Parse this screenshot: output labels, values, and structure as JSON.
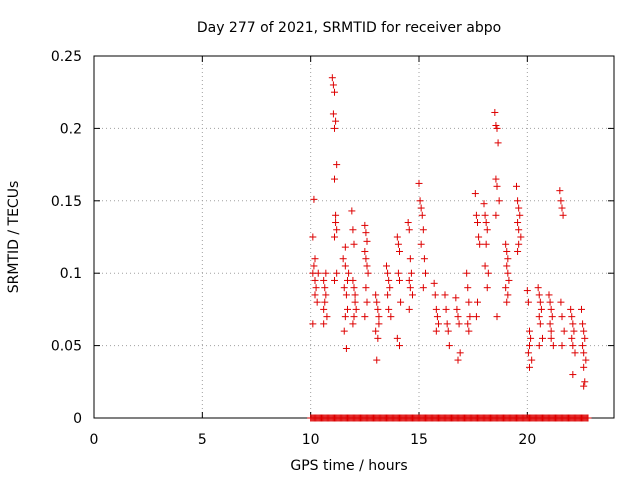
{
  "chart_data": {
    "type": "scatter",
    "title": "Day 277 of 2021, SRMTID for receiver abpo",
    "xlabel": "GPS time / hours",
    "ylabel": "SRMTID / TECUs",
    "xlim": [
      0,
      24
    ],
    "ylim": [
      0,
      0.25
    ],
    "xticks": [
      0,
      5,
      10,
      15,
      20
    ],
    "xtick_labels": [
      "0",
      "5",
      "10",
      "15",
      "20"
    ],
    "yticks": [
      0,
      0.05,
      0.1,
      0.15,
      0.2,
      0.25
    ],
    "ytick_labels": [
      "0",
      "0.05",
      "0.1",
      "0.15",
      "0.2",
      "0.25"
    ],
    "grid": true,
    "marker": "+",
    "color": "#dd0000",
    "series": [
      {
        "name": "SRMTID",
        "x": [
          10.1,
          10.15,
          10.2,
          10.1,
          10.15,
          10.2,
          10.25,
          10.3,
          10.1,
          10.2,
          10.35,
          10.6,
          10.65,
          10.7,
          10.6,
          10.7,
          10.75,
          10.6,
          10.65,
          11.0,
          11.05,
          11.1,
          11.05,
          11.1,
          11.15,
          11.1,
          11.2,
          11.15,
          11.2,
          11.1,
          11.15,
          11.2,
          11.1,
          11.5,
          11.6,
          11.55,
          11.65,
          11.7,
          11.6,
          11.55,
          11.65,
          11.7,
          11.75,
          11.6,
          11.9,
          11.95,
          12.0,
          11.95,
          12.0,
          12.05,
          12.1,
          12.0,
          11.95,
          12.05,
          12.5,
          12.55,
          12.6,
          12.5,
          12.55,
          12.6,
          12.65,
          12.55,
          12.6,
          12.5,
          13.0,
          13.05,
          13.1,
          13.15,
          13.0,
          13.1,
          13.05,
          13.15,
          13.5,
          13.55,
          13.6,
          13.65,
          13.55,
          13.6,
          13.7,
          14.0,
          14.05,
          14.1,
          14.05,
          14.1,
          14.15,
          14.0,
          14.1,
          14.5,
          14.55,
          14.6,
          14.65,
          14.55,
          14.6,
          14.7,
          14.55,
          15.0,
          15.05,
          15.1,
          15.15,
          15.2,
          15.1,
          15.25,
          15.3,
          15.2,
          15.7,
          15.75,
          15.8,
          15.85,
          15.9,
          15.8,
          16.2,
          16.25,
          16.3,
          16.35,
          16.4,
          16.7,
          16.75,
          16.8,
          16.85,
          16.9,
          16.8,
          17.2,
          17.25,
          17.3,
          17.35,
          17.25,
          17.3,
          17.6,
          17.65,
          17.7,
          17.75,
          17.8,
          17.7,
          17.65,
          18.0,
          18.05,
          18.1,
          18.15,
          18.1,
          18.05,
          18.2,
          18.15,
          18.5,
          18.55,
          18.6,
          18.65,
          18.55,
          18.6,
          18.7,
          18.55,
          18.6,
          19.0,
          19.05,
          19.1,
          19.05,
          19.1,
          19.15,
          19.0,
          19.1,
          19.05,
          19.5,
          19.55,
          19.6,
          19.65,
          19.55,
          19.6,
          19.7,
          19.6,
          19.55,
          20.0,
          20.05,
          20.1,
          20.15,
          20.1,
          20.05,
          20.2,
          20.1,
          20.5,
          20.55,
          20.6,
          20.65,
          20.55,
          20.6,
          20.7,
          20.55,
          21.0,
          21.05,
          21.1,
          21.15,
          21.05,
          21.1,
          21.2,
          21.1,
          21.5,
          21.55,
          21.6,
          21.65,
          21.55,
          21.6,
          21.7,
          21.6,
          22.0,
          22.05,
          22.1,
          22.15,
          22.05,
          22.1,
          22.2,
          22.1,
          22.5,
          22.55,
          22.6,
          22.65,
          22.55,
          22.6,
          22.7,
          22.6,
          22.65,
          22.6
        ],
        "y": [
          0.1,
          0.105,
          0.095,
          0.125,
          0.151,
          0.085,
          0.09,
          0.08,
          0.065,
          0.11,
          0.1,
          0.075,
          0.08,
          0.085,
          0.095,
          0.1,
          0.07,
          0.065,
          0.09,
          0.235,
          0.23,
          0.225,
          0.21,
          0.2,
          0.205,
          0.165,
          0.175,
          0.135,
          0.13,
          0.125,
          0.14,
          0.1,
          0.095,
          0.11,
          0.105,
          0.09,
          0.085,
          0.075,
          0.07,
          0.06,
          0.048,
          0.095,
          0.1,
          0.118,
          0.143,
          0.13,
          0.12,
          0.095,
          0.09,
          0.08,
          0.075,
          0.07,
          0.065,
          0.085,
          0.133,
          0.128,
          0.122,
          0.115,
          0.11,
          0.105,
          0.1,
          0.09,
          0.08,
          0.07,
          0.085,
          0.08,
          0.075,
          0.065,
          0.06,
          0.055,
          0.04,
          0.07,
          0.105,
          0.1,
          0.095,
          0.09,
          0.085,
          0.075,
          0.07,
          0.125,
          0.12,
          0.115,
          0.1,
          0.095,
          0.08,
          0.055,
          0.05,
          0.135,
          0.13,
          0.11,
          0.1,
          0.095,
          0.09,
          0.085,
          0.075,
          0.162,
          0.15,
          0.145,
          0.14,
          0.13,
          0.12,
          0.11,
          0.1,
          0.09,
          0.093,
          0.085,
          0.075,
          0.07,
          0.065,
          0.06,
          0.085,
          0.075,
          0.065,
          0.06,
          0.05,
          0.083,
          0.075,
          0.07,
          0.065,
          0.045,
          0.04,
          0.1,
          0.09,
          0.08,
          0.07,
          0.065,
          0.06,
          0.155,
          0.14,
          0.135,
          0.125,
          0.12,
          0.08,
          0.07,
          0.148,
          0.14,
          0.135,
          0.13,
          0.12,
          0.105,
          0.1,
          0.09,
          0.211,
          0.202,
          0.2,
          0.19,
          0.165,
          0.16,
          0.15,
          0.14,
          0.07,
          0.12,
          0.115,
          0.11,
          0.105,
          0.1,
          0.095,
          0.09,
          0.085,
          0.08,
          0.16,
          0.15,
          0.145,
          0.14,
          0.135,
          0.13,
          0.125,
          0.12,
          0.115,
          0.088,
          0.08,
          0.06,
          0.055,
          0.05,
          0.045,
          0.04,
          0.035,
          0.09,
          0.085,
          0.08,
          0.075,
          0.07,
          0.065,
          0.055,
          0.05,
          0.085,
          0.08,
          0.075,
          0.07,
          0.065,
          0.055,
          0.05,
          0.06,
          0.157,
          0.15,
          0.145,
          0.14,
          0.08,
          0.07,
          0.06,
          0.05,
          0.075,
          0.07,
          0.065,
          0.06,
          0.055,
          0.05,
          0.045,
          0.03,
          0.075,
          0.065,
          0.06,
          0.055,
          0.05,
          0.045,
          0.04,
          0.035,
          0.025,
          0.022
        ],
        "zero_band": [
          10.0,
          22.8
        ]
      }
    ]
  }
}
